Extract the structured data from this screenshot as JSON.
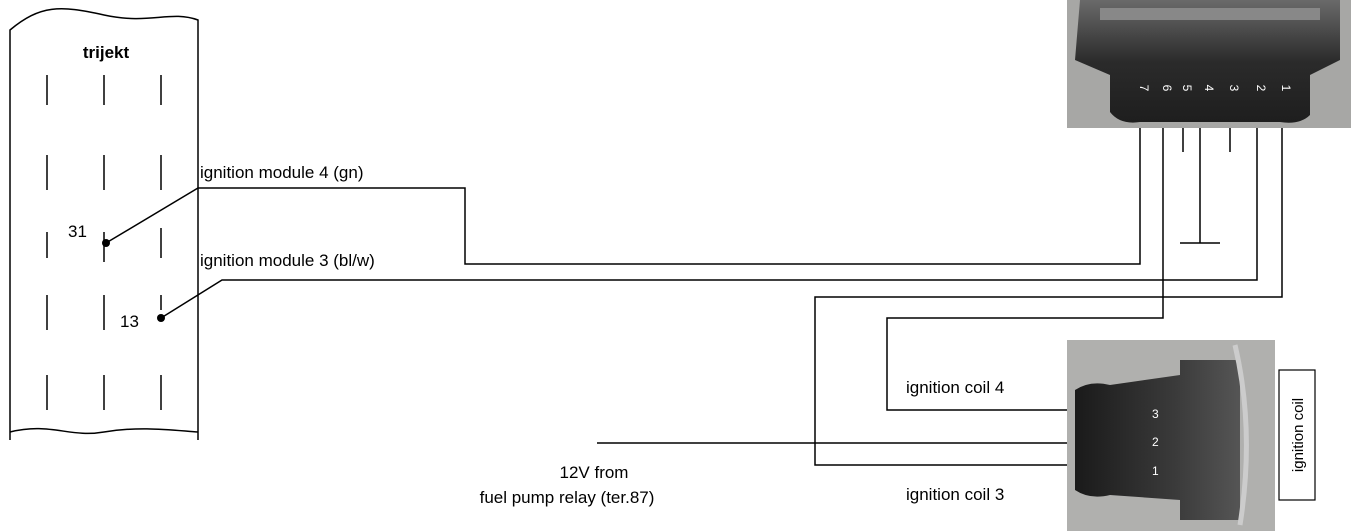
{
  "ecu": {
    "label": "trijekt",
    "pins": [
      "31",
      "13"
    ]
  },
  "wires": {
    "module4": "ignition module 4 (gn)",
    "module3": "ignition module 3 (bl/w)",
    "coil4": "ignition coil 4",
    "coil3": "ignition coil 3",
    "supply": [
      "12V from",
      "fuel pump relay (ter.87)"
    ]
  },
  "connector": {
    "pins": [
      "7",
      "6",
      "5",
      "4",
      "3",
      "2",
      "1"
    ]
  },
  "coil": {
    "label": "ignition coil",
    "pins": [
      "3",
      "2",
      "1"
    ]
  }
}
